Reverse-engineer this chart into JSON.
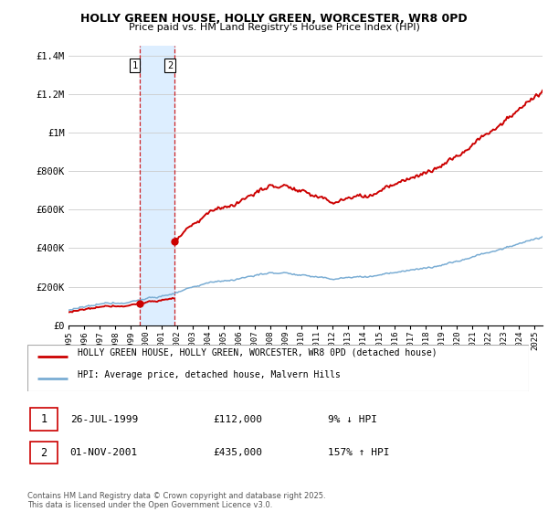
{
  "title": "HOLLY GREEN HOUSE, HOLLY GREEN, WORCESTER, WR8 0PD",
  "subtitle": "Price paid vs. HM Land Registry's House Price Index (HPI)",
  "y_ticks": [
    0,
    200000,
    400000,
    600000,
    800000,
    1000000,
    1200000,
    1400000
  ],
  "y_tick_labels": [
    "£0",
    "£200K",
    "£400K",
    "£600K",
    "£800K",
    "£1M",
    "£1.2M",
    "£1.4M"
  ],
  "purchase1_date": 1999.56,
  "purchase1_price": 112000,
  "purchase2_date": 2001.83,
  "purchase2_price": 435000,
  "legend_line1": "HOLLY GREEN HOUSE, HOLLY GREEN, WORCESTER, WR8 0PD (detached house)",
  "legend_line2": "HPI: Average price, detached house, Malvern Hills",
  "info1_num": "1",
  "info1_date": "26-JUL-1999",
  "info1_price": "£112,000",
  "info1_hpi": "9% ↓ HPI",
  "info2_num": "2",
  "info2_date": "01-NOV-2001",
  "info2_price": "£435,000",
  "info2_hpi": "157% ↑ HPI",
  "footnote": "Contains HM Land Registry data © Crown copyright and database right 2025.\nThis data is licensed under the Open Government Licence v3.0.",
  "house_line_color": "#cc0000",
  "hpi_line_color": "#7aadd4",
  "shade_color": "#ddeeff",
  "grid_color": "#cccccc"
}
